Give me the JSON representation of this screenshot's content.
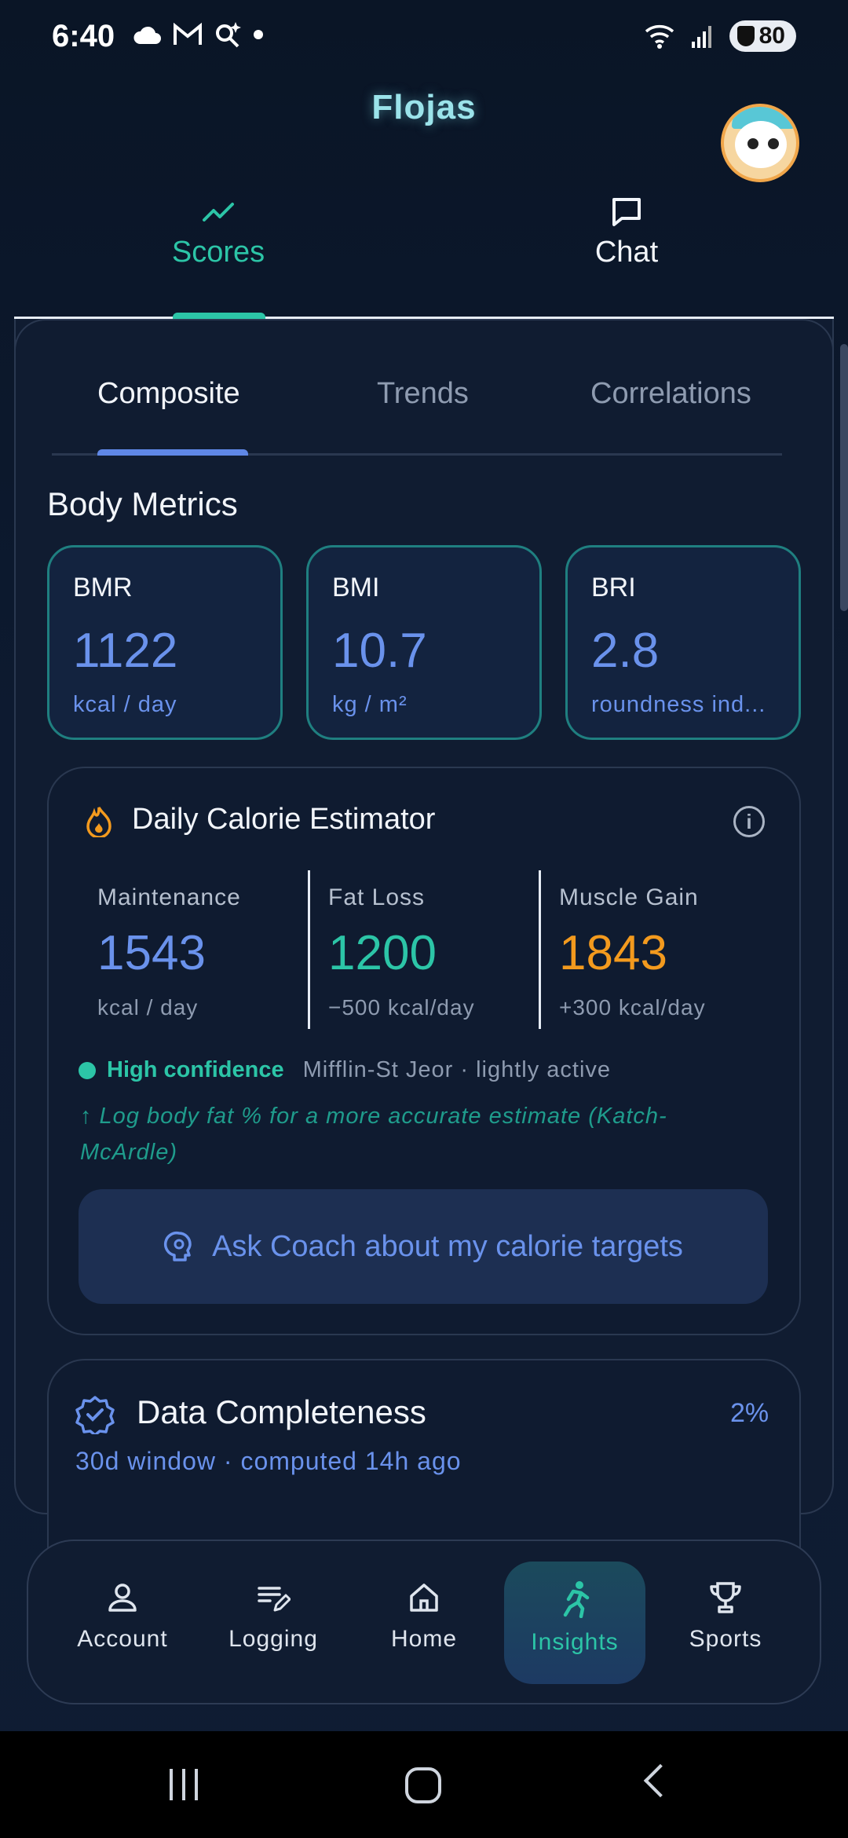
{
  "status_bar": {
    "time": "6:40",
    "battery": "80",
    "left_icons": [
      "cloud-icon",
      "gmail-icon",
      "search-sparkle-icon",
      "dot-icon"
    ],
    "right_icons": [
      "wifi-icon",
      "signal-icon",
      "battery-icon"
    ]
  },
  "header": {
    "title": "Flojas"
  },
  "top_tabs": [
    {
      "label": "Scores",
      "icon": "trend-line-icon",
      "active": true
    },
    {
      "label": "Chat",
      "icon": "chat-bubble-icon",
      "active": false
    }
  ],
  "sub_tabs": [
    {
      "label": "Composite",
      "active": true
    },
    {
      "label": "Trends",
      "active": false
    },
    {
      "label": "Correlations",
      "active": false
    }
  ],
  "body_metrics": {
    "title": "Body Metrics",
    "cards": [
      {
        "name": "BMR",
        "value": "1122",
        "unit": "kcal / day"
      },
      {
        "name": "BMI",
        "value": "10.7",
        "unit": "kg / m²"
      },
      {
        "name": "BRI",
        "value": "2.8",
        "unit": "roundness ind..."
      }
    ]
  },
  "calorie_estimator": {
    "title": "Daily Calorie Estimator",
    "columns": [
      {
        "label": "Maintenance",
        "value": "1543",
        "sub": "kcal / day",
        "color": "#6a92ec"
      },
      {
        "label": "Fat Loss",
        "value": "1200",
        "sub": "−500 kcal/day",
        "color": "#2cc5a7"
      },
      {
        "label": "Muscle Gain",
        "value": "1843",
        "sub": "+300 kcal/day",
        "color": "#f39a1e"
      }
    ],
    "confidence_label": "High confidence",
    "method": "Mifflin-St Jeor · lightly active",
    "hint": "↑ Log body fat % for a more accurate estimate (Katch-McArdle)",
    "coach_button": "Ask Coach about my calorie targets"
  },
  "data_completeness": {
    "title": "Data Completeness",
    "percent": "2%",
    "subtitle": "30d window · computed 14h ago"
  },
  "bottom_nav": [
    {
      "label": "Account",
      "icon": "person-icon",
      "active": false
    },
    {
      "label": "Logging",
      "icon": "edit-list-icon",
      "active": false
    },
    {
      "label": "Home",
      "icon": "home-icon",
      "active": false
    },
    {
      "label": "Insights",
      "icon": "running-person-icon",
      "active": true
    },
    {
      "label": "Sports",
      "icon": "trophy-icon",
      "active": false
    }
  ],
  "colors": {
    "accent_teal": "#2cc5a7",
    "accent_blue": "#6a92ec",
    "accent_orange": "#f39a1e",
    "background": "#0b1322"
  }
}
